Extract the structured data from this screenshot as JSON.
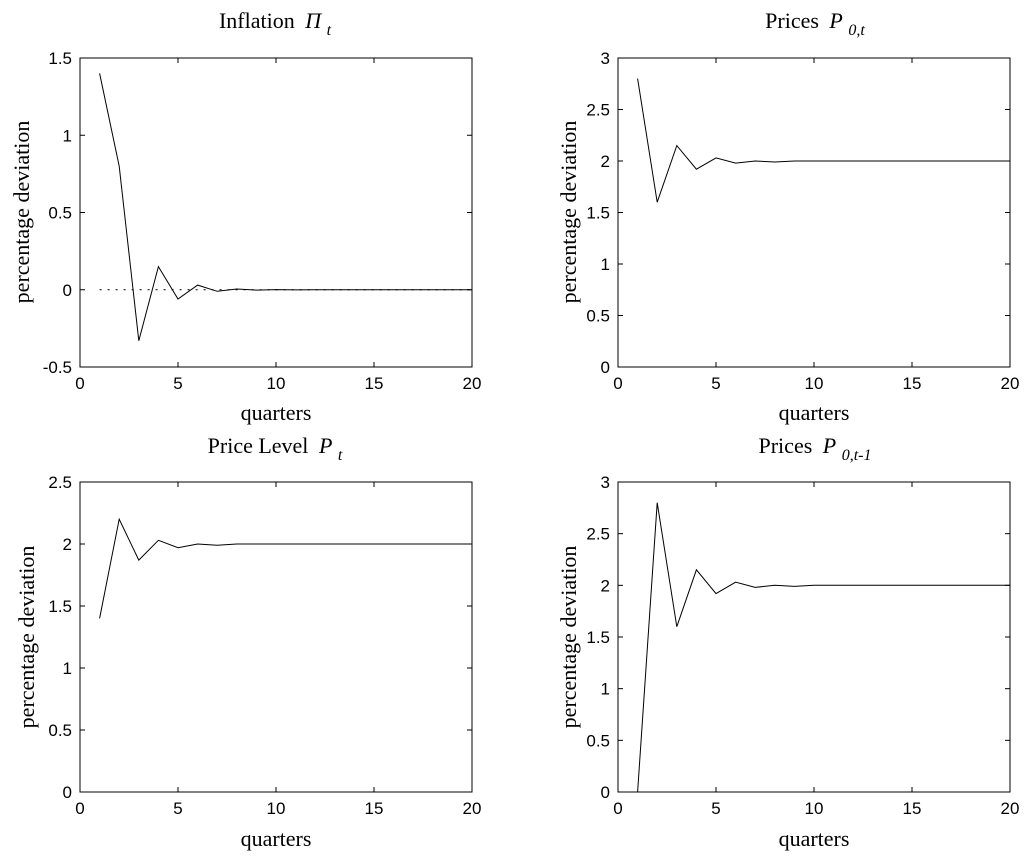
{
  "chart_data": [
    {
      "type": "line",
      "title": "Inflation",
      "title_symbol": "Π",
      "title_sub": "t",
      "xlabel": "quarters",
      "ylabel": "percentage deviation",
      "xlim": [
        0,
        20
      ],
      "ylim": [
        -0.5,
        1.5
      ],
      "xticks": [
        0,
        5,
        10,
        15,
        20
      ],
      "yticks": [
        -0.5,
        0,
        0.5,
        1,
        1.5
      ],
      "x": [
        1,
        2,
        3,
        4,
        5,
        6,
        7,
        8,
        9,
        10,
        11,
        12,
        13,
        14,
        15,
        16,
        17,
        18,
        19,
        20
      ],
      "series": [
        {
          "values": [
            1.4,
            0.8,
            -0.33,
            0.15,
            -0.06,
            0.03,
            -0.01,
            0.005,
            -0.002,
            0.001,
            -0.001,
            0,
            0,
            0,
            0,
            0,
            0,
            0,
            0,
            0
          ],
          "style": "solid"
        }
      ],
      "zero_line": {
        "y": 0,
        "style": "dotted"
      },
      "grid": false
    },
    {
      "type": "line",
      "title": "Prices",
      "title_symbol": "P",
      "title_sub": "0,t",
      "xlabel": "quarters",
      "ylabel": "percentage deviation",
      "xlim": [
        0,
        20
      ],
      "ylim": [
        0,
        3
      ],
      "xticks": [
        0,
        5,
        10,
        15,
        20
      ],
      "yticks": [
        0,
        0.5,
        1,
        1.5,
        2,
        2.5,
        3
      ],
      "x": [
        1,
        2,
        3,
        4,
        5,
        6,
        7,
        8,
        9,
        10,
        11,
        12,
        13,
        14,
        15,
        16,
        17,
        18,
        19,
        20
      ],
      "series": [
        {
          "values": [
            2.8,
            1.6,
            2.15,
            1.92,
            2.03,
            1.98,
            2.0,
            1.99,
            2.0,
            2.0,
            2.0,
            2.0,
            2.0,
            2.0,
            2.0,
            2.0,
            2.0,
            2.0,
            2.0,
            2.0
          ],
          "style": "solid"
        }
      ],
      "grid": false
    },
    {
      "type": "line",
      "title": "Price Level",
      "title_symbol": "P",
      "title_sub": "t",
      "xlabel": "quarters",
      "ylabel": "percentage deviation",
      "xlim": [
        0,
        20
      ],
      "ylim": [
        0,
        2.5
      ],
      "xticks": [
        0,
        5,
        10,
        15,
        20
      ],
      "yticks": [
        0,
        0.5,
        1,
        1.5,
        2,
        2.5
      ],
      "x": [
        1,
        2,
        3,
        4,
        5,
        6,
        7,
        8,
        9,
        10,
        11,
        12,
        13,
        14,
        15,
        16,
        17,
        18,
        19,
        20
      ],
      "series": [
        {
          "values": [
            1.4,
            2.2,
            1.87,
            2.03,
            1.97,
            2.0,
            1.99,
            2.0,
            2.0,
            2.0,
            2.0,
            2.0,
            2.0,
            2.0,
            2.0,
            2.0,
            2.0,
            2.0,
            2.0,
            2.0
          ],
          "style": "solid"
        }
      ],
      "grid": false
    },
    {
      "type": "line",
      "title": "Prices",
      "title_symbol": "P",
      "title_sub": "0,t-1",
      "xlabel": "quarters",
      "ylabel": "percentage deviation",
      "xlim": [
        0,
        20
      ],
      "ylim": [
        0,
        3
      ],
      "xticks": [
        0,
        5,
        10,
        15,
        20
      ],
      "yticks": [
        0,
        0.5,
        1,
        1.5,
        2,
        2.5,
        3
      ],
      "x": [
        1,
        2,
        3,
        4,
        5,
        6,
        7,
        8,
        9,
        10,
        11,
        12,
        13,
        14,
        15,
        16,
        17,
        18,
        19,
        20
      ],
      "series": [
        {
          "values": [
            0,
            2.8,
            1.6,
            2.15,
            1.92,
            2.03,
            1.98,
            2.0,
            1.99,
            2.0,
            2.0,
            2.0,
            2.0,
            2.0,
            2.0,
            2.0,
            2.0,
            2.0,
            2.0,
            2.0
          ],
          "style": "solid"
        }
      ],
      "grid": false
    }
  ]
}
